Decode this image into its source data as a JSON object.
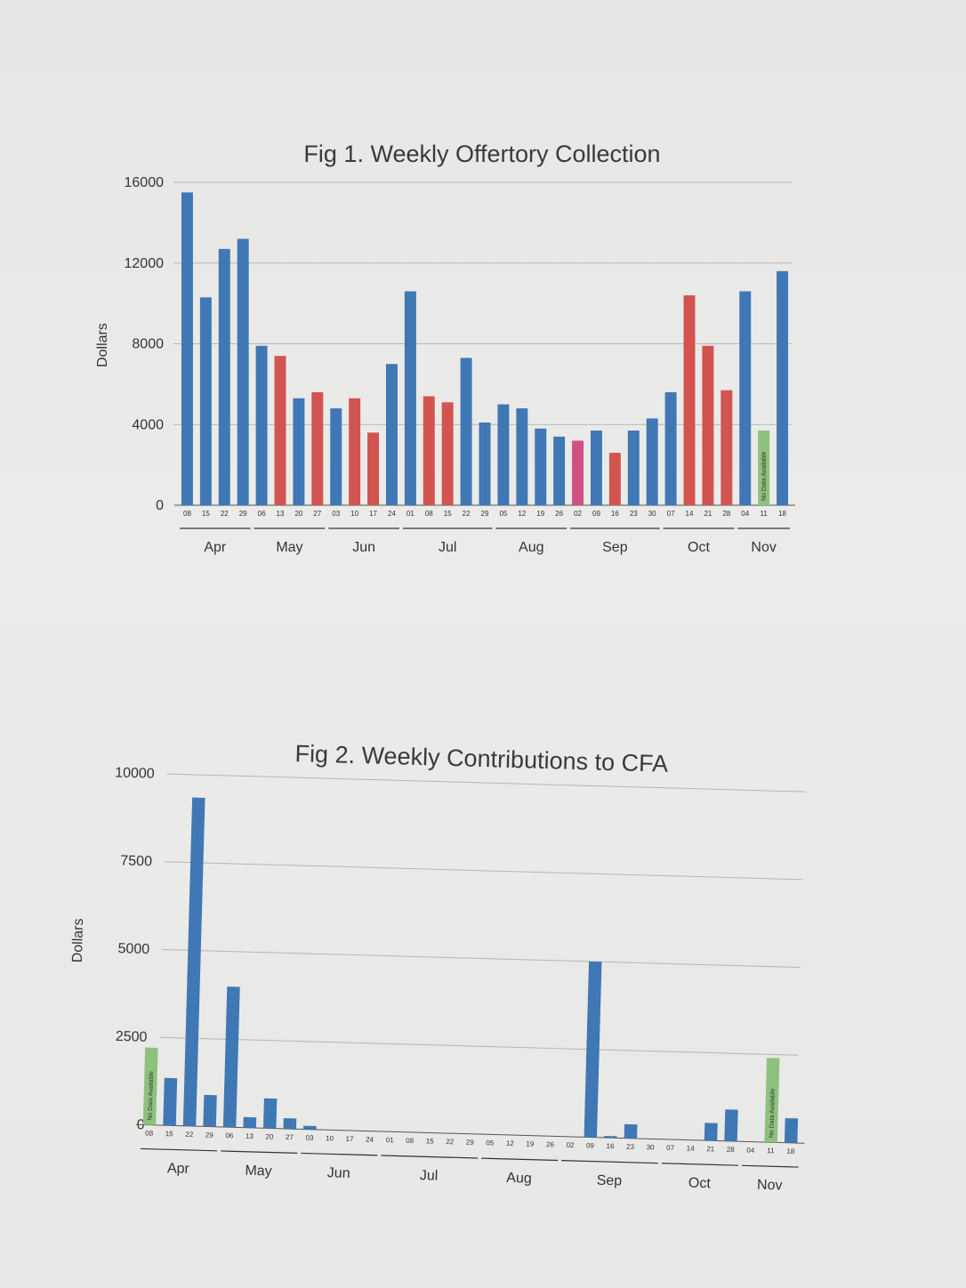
{
  "colors": {
    "blue": "#3f78b4",
    "red": "#d25450",
    "pink": "#d24f86",
    "green": "#8dc27e"
  },
  "chart_data": [
    {
      "type": "bar",
      "title": "Fig 1. Weekly Offertory Collection",
      "xlabel": "",
      "ylabel": "Dollars",
      "ylim": [
        0,
        16000
      ],
      "yticks": [
        "0",
        "4000",
        "8000",
        "12000",
        "16000"
      ],
      "grid": true,
      "categories": [
        "08",
        "15",
        "22",
        "29",
        "06",
        "13",
        "20",
        "27",
        "03",
        "10",
        "17",
        "24",
        "01",
        "08",
        "15",
        "22",
        "29",
        "05",
        "12",
        "19",
        "26",
        "02",
        "09",
        "16",
        "23",
        "30",
        "07",
        "14",
        "21",
        "28",
        "04",
        "11",
        "18"
      ],
      "values": [
        15500,
        10300,
        12700,
        13200,
        7900,
        7400,
        5300,
        5600,
        4800,
        5300,
        3600,
        7000,
        10600,
        5400,
        5100,
        7300,
        4100,
        5000,
        4800,
        3800,
        3400,
        3200,
        3700,
        2600,
        3700,
        4300,
        5600,
        10400,
        7900,
        5700,
        10600,
        3700,
        11600
      ],
      "bar_colors": [
        "blue",
        "blue",
        "blue",
        "blue",
        "blue",
        "red",
        "blue",
        "red",
        "blue",
        "red",
        "red",
        "blue",
        "blue",
        "red",
        "red",
        "blue",
        "blue",
        "blue",
        "blue",
        "blue",
        "blue",
        "pink",
        "blue",
        "red",
        "blue",
        "blue",
        "blue",
        "red",
        "red",
        "red",
        "blue",
        "green",
        "blue"
      ],
      "no_data": [
        {
          "index": 31,
          "label": "No Data Available"
        }
      ],
      "months": [
        {
          "label": "Apr",
          "from": 0,
          "to": 3
        },
        {
          "label": "May",
          "from": 4,
          "to": 7
        },
        {
          "label": "Jun",
          "from": 8,
          "to": 11
        },
        {
          "label": "Jul",
          "from": 12,
          "to": 16
        },
        {
          "label": "Aug",
          "from": 17,
          "to": 20
        },
        {
          "label": "Sep",
          "from": 21,
          "to": 25
        },
        {
          "label": "Oct",
          "from": 26,
          "to": 29
        },
        {
          "label": "Nov",
          "from": 30,
          "to": 32
        }
      ]
    },
    {
      "type": "bar",
      "title": "Fig 2. Weekly Contributions to CFA",
      "xlabel": "",
      "ylabel": "Dollars",
      "ylim": [
        0,
        10000
      ],
      "yticks": [
        "0",
        "2500",
        "5000",
        "7500",
        "10000"
      ],
      "grid": true,
      "categories": [
        "08",
        "15",
        "22",
        "29",
        "06",
        "13",
        "20",
        "27",
        "03",
        "10",
        "17",
        "24",
        "01",
        "08",
        "15",
        "22",
        "29",
        "05",
        "12",
        "19",
        "26",
        "02",
        "09",
        "16",
        "23",
        "30",
        "07",
        "14",
        "21",
        "28",
        "04",
        "11",
        "18"
      ],
      "values": [
        2200,
        1350,
        9350,
        900,
        4000,
        300,
        850,
        300,
        100,
        0,
        0,
        0,
        0,
        0,
        0,
        0,
        0,
        0,
        0,
        0,
        0,
        0,
        5000,
        50,
        400,
        0,
        0,
        0,
        500,
        900,
        0,
        2400,
        700
      ],
      "bar_colors": [
        "green",
        "blue",
        "blue",
        "blue",
        "blue",
        "blue",
        "blue",
        "blue",
        "blue",
        "blue",
        "blue",
        "blue",
        "blue",
        "blue",
        "blue",
        "blue",
        "blue",
        "blue",
        "blue",
        "blue",
        "blue",
        "blue",
        "blue",
        "blue",
        "blue",
        "blue",
        "blue",
        "blue",
        "blue",
        "blue",
        "blue",
        "green",
        "blue"
      ],
      "no_data": [
        {
          "index": 0,
          "label": "No Data Available"
        },
        {
          "index": 31,
          "label": "No Data Available"
        }
      ],
      "months": [
        {
          "label": "Apr",
          "from": 0,
          "to": 3
        },
        {
          "label": "May",
          "from": 4,
          "to": 7
        },
        {
          "label": "Jun",
          "from": 8,
          "to": 11
        },
        {
          "label": "Jul",
          "from": 12,
          "to": 16
        },
        {
          "label": "Aug",
          "from": 17,
          "to": 20
        },
        {
          "label": "Sep",
          "from": 21,
          "to": 25
        },
        {
          "label": "Oct",
          "from": 26,
          "to": 29
        },
        {
          "label": "Nov",
          "from": 30,
          "to": 32
        }
      ]
    }
  ]
}
